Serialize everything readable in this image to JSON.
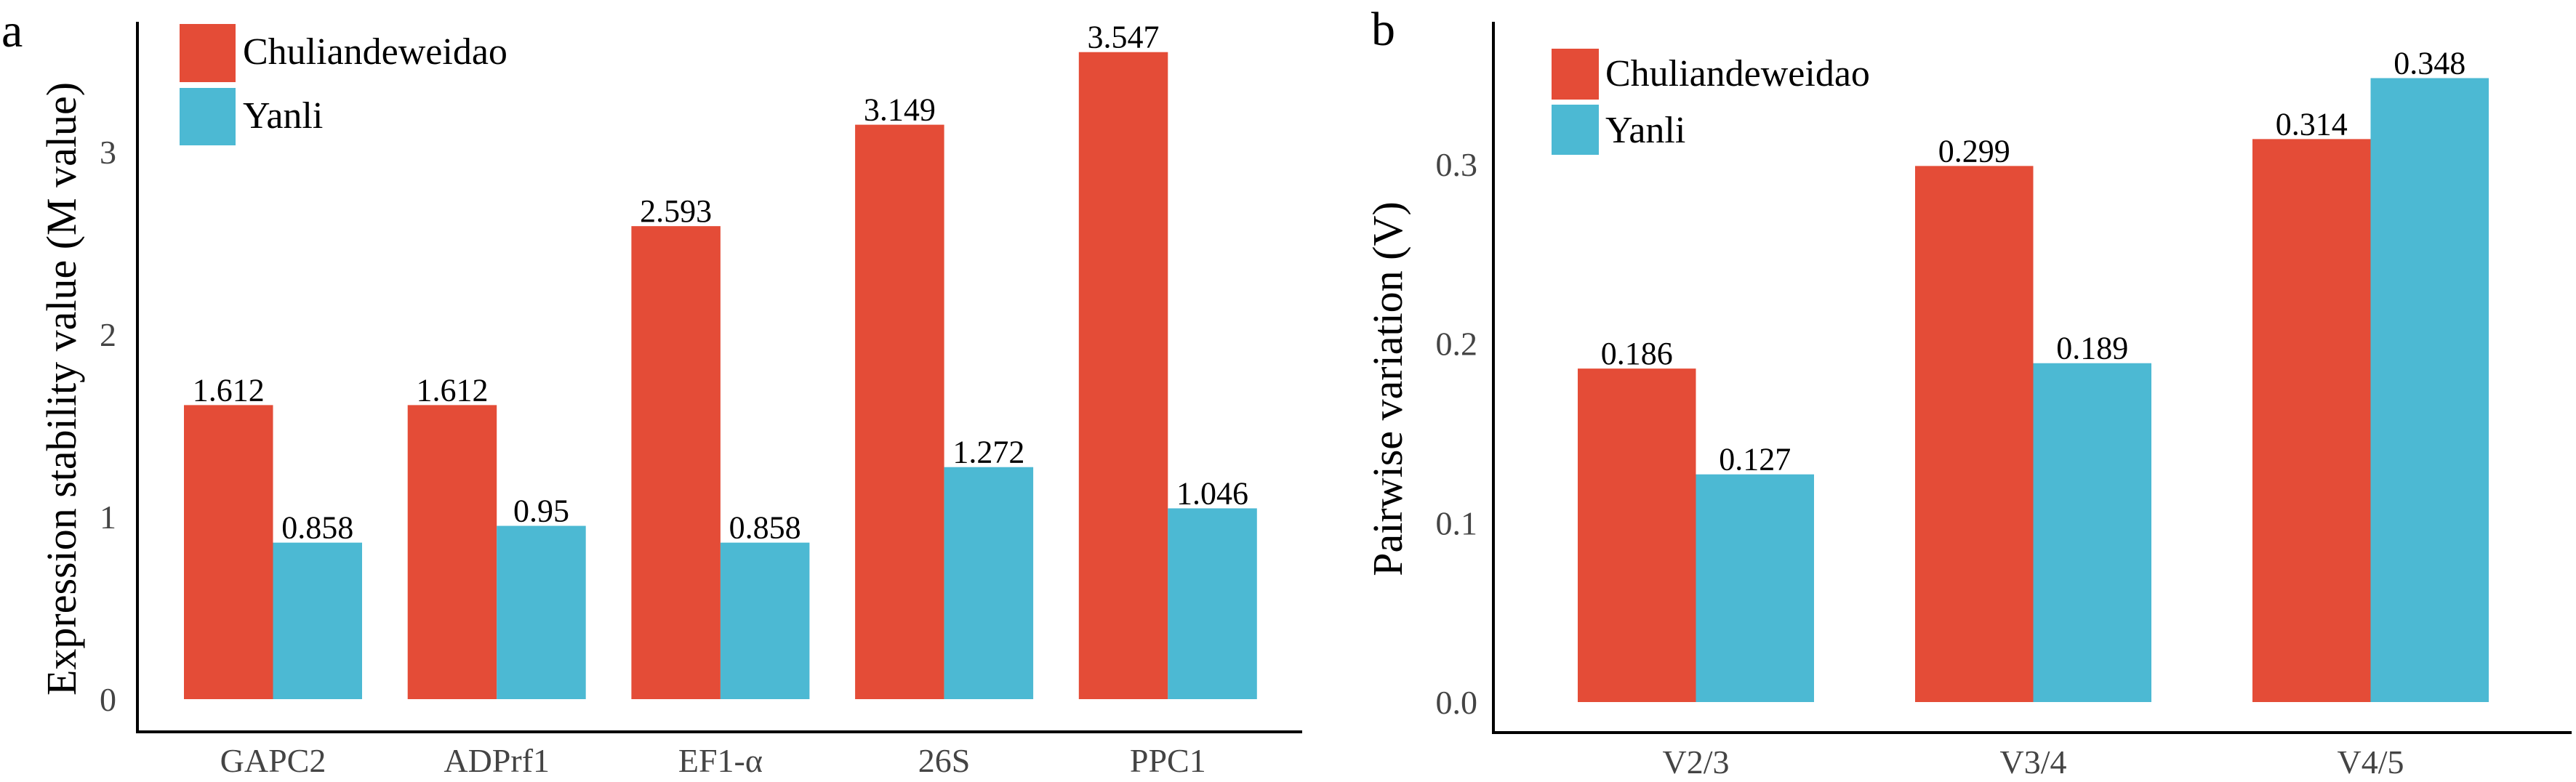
{
  "colors": {
    "Chuliandeweidao": "#e44c37",
    "Yanli": "#4cb9d3"
  },
  "chart_data": [
    {
      "type": "bar",
      "panel_label": "a",
      "ylabel": "Expression stability value (M value)",
      "xlabel": "",
      "categories": [
        "GAPC2",
        "ADPrf1",
        "EF1-α",
        "26S",
        "PPC1"
      ],
      "series": [
        {
          "name": "Chuliandeweidao",
          "values": [
            1.612,
            1.612,
            2.593,
            3.149,
            3.547
          ],
          "labels": [
            "1.612",
            "1.612",
            "2.593",
            "3.149",
            "3.547"
          ]
        },
        {
          "name": "Yanli",
          "values": [
            0.858,
            0.95,
            0.858,
            1.272,
            1.046
          ],
          "labels": [
            "0.858",
            "0.95",
            "0.858",
            "1.272",
            "1.046"
          ]
        }
      ],
      "yticks": [
        "0",
        "1",
        "2",
        "3"
      ],
      "ytick_values": [
        0,
        1,
        2,
        3
      ],
      "ylim": [
        -0.18,
        3.7
      ],
      "legend": "top-left",
      "grid": false
    },
    {
      "type": "bar",
      "panel_label": "b",
      "ylabel": "Pairwise variation (V)",
      "xlabel": "",
      "categories": [
        "V2/3",
        "V3/4",
        "V4/5"
      ],
      "series": [
        {
          "name": "Chuliandeweidao",
          "values": [
            0.186,
            0.299,
            0.314
          ],
          "labels": [
            "0.186",
            "0.299",
            "0.314"
          ]
        },
        {
          "name": "Yanli",
          "values": [
            0.127,
            0.189,
            0.348
          ],
          "labels": [
            "0.127",
            "0.189",
            "0.348"
          ]
        }
      ],
      "yticks": [
        "0.0",
        "0.1",
        "0.2",
        "0.3"
      ],
      "ytick_values": [
        0,
        0.1,
        0.2,
        0.3
      ],
      "ylim": [
        -0.017,
        0.37
      ],
      "legend": "top-left",
      "grid": false
    }
  ]
}
